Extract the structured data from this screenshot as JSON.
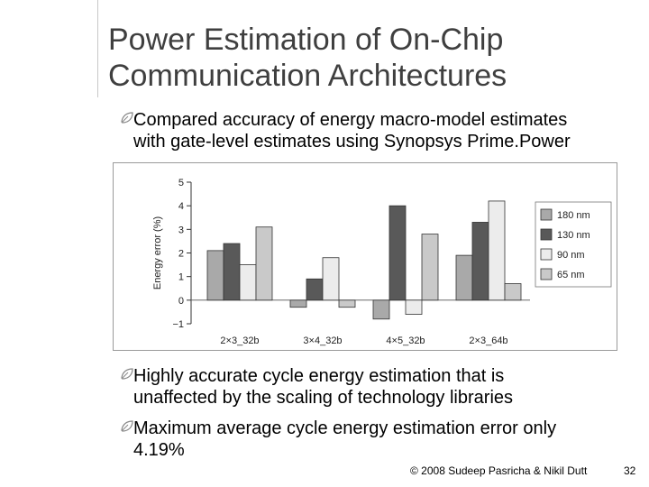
{
  "slide": {
    "title_line1": "Power Estimation of On-Chip",
    "title_line2": "Communication Architectures",
    "bullets": [
      {
        "line1": "Compared accuracy of energy macro-model estimates",
        "line2": "with gate-level estimates using Synopsys Prime.Power"
      },
      {
        "line1": "Highly accurate cycle energy estimation that is",
        "line2": "unaffected by the scaling of technology libraries"
      },
      {
        "line1": "Maximum average cycle energy estimation error only",
        "line2": "4.19%"
      }
    ],
    "credit": "© 2008 Sudeep Pasricha & Nikil Dutt",
    "page_number": "32",
    "bullet_icon": "leaf-bullet-icon"
  },
  "chart_data": {
    "type": "bar",
    "categories": [
      "2×3_32b",
      "3×4_32b",
      "4×5_32b",
      "2×3_64b"
    ],
    "series": [
      {
        "name": "180 nm",
        "values": [
          2.1,
          -0.3,
          -0.8,
          1.9
        ],
        "color": "#a9a9a9"
      },
      {
        "name": "130 nm",
        "values": [
          2.4,
          0.9,
          4.0,
          3.3
        ],
        "color": "#595959"
      },
      {
        "name": "90 nm",
        "values": [
          1.5,
          1.8,
          -0.6,
          4.2
        ],
        "color": "#ececec"
      },
      {
        "name": "65 nm",
        "values": [
          3.1,
          -0.3,
          2.8,
          0.7
        ],
        "color": "#c9c9c9"
      }
    ],
    "ylabel": "Energy error (%)",
    "xlabel": "",
    "title": "",
    "ylim": [
      -1,
      5
    ],
    "yticks": [
      "5",
      "4",
      "3",
      "2",
      "1",
      "0",
      "−1"
    ],
    "ytick_values": [
      5,
      4,
      3,
      2,
      1,
      0,
      -1
    ],
    "legend_position": "right",
    "grid": false
  }
}
